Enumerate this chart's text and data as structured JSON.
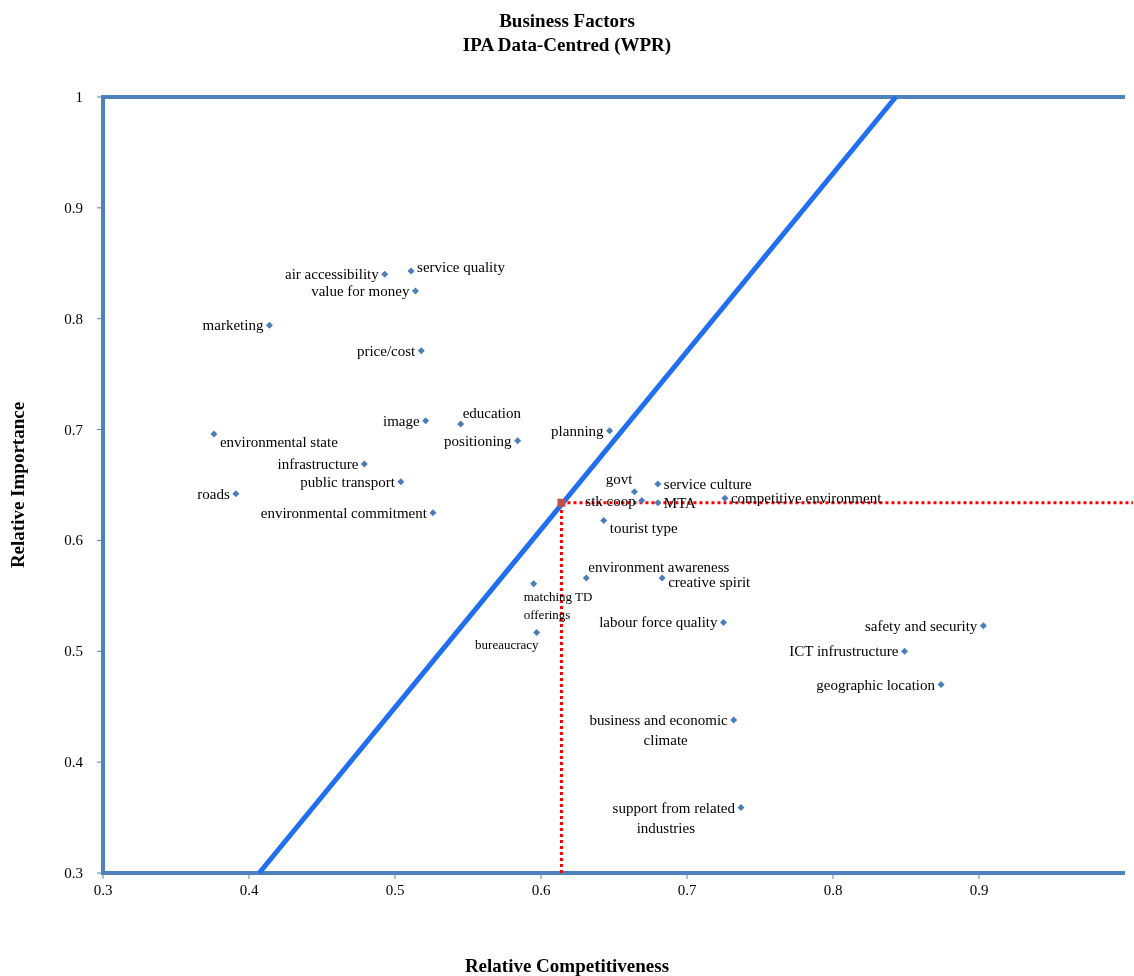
{
  "chart_data": {
    "type": "scatter",
    "title": "Business Factors",
    "subtitle": "IPA Data-Centred (WPR)",
    "xlabel": "Relative Competitiveness",
    "ylabel": "Relative Importance",
    "xlim": [
      0.3,
      1.0
    ],
    "ylim": [
      0.3,
      1.0
    ],
    "xticks": [
      0.3,
      0.4,
      0.5,
      0.6,
      0.7,
      0.8,
      0.9
    ],
    "yticks": [
      0.3,
      0.4,
      0.5,
      0.6,
      0.7,
      0.8,
      0.9,
      1
    ],
    "grid": false,
    "series": [
      {
        "color": "#4a7ebb",
        "marker": "diamond",
        "x": [
          0.493,
          0.511,
          0.514,
          0.414,
          0.518,
          0.521,
          0.545,
          0.584,
          0.647,
          0.376,
          0.479,
          0.504,
          0.391,
          0.526,
          0.664,
          0.68,
          0.669,
          0.68,
          0.726,
          0.643,
          0.631,
          0.683,
          0.595,
          0.597,
          0.725,
          0.903,
          0.849,
          0.874,
          0.732,
          0.737
        ],
        "values": [
          0.84,
          0.843,
          0.825,
          0.794,
          0.771,
          0.708,
          0.705,
          0.69,
          0.699,
          0.696,
          0.669,
          0.653,
          0.642,
          0.625,
          0.644,
          0.651,
          0.636,
          0.634,
          0.638,
          0.618,
          0.566,
          0.566,
          0.561,
          0.517,
          0.526,
          0.523,
          0.5,
          0.47,
          0.438,
          0.359
        ],
        "value_labels": [
          "air accessibility",
          "service quality",
          "value for money",
          "marketing",
          "price/cost",
          "image",
          "education",
          "positioning",
          "planning",
          "environmental state",
          "infrastructure",
          "public transport",
          "roads",
          "environmental commitment",
          "govt",
          "service culture",
          "stk coop",
          "MTA",
          "competitive environment",
          "tourist type",
          "environment awareness",
          "creative spirit",
          "matching TD offerings",
          "bureaucracy",
          "labour force quality",
          "safety and security",
          "ICT infrustructure",
          "geographic location",
          "business and economic climate",
          "support from related industries"
        ]
      },
      {
        "type": "line",
        "color": "#1f6ff0",
        "x": [
          0.407,
          0.843
        ],
        "values": [
          0.3,
          1.0
        ]
      },
      {
        "type": "scatter",
        "color": "#c0504d",
        "marker": "square",
        "x": [
          0.614
        ],
        "values": [
          0.634
        ]
      }
    ],
    "ref_lines": [
      {
        "axis": "x",
        "value": 0.614,
        "color": "#ff0000",
        "line_style": "dotted"
      },
      {
        "axis": "y",
        "value": 0.634,
        "color": "#ff0000",
        "line_style": "dotted"
      }
    ]
  }
}
